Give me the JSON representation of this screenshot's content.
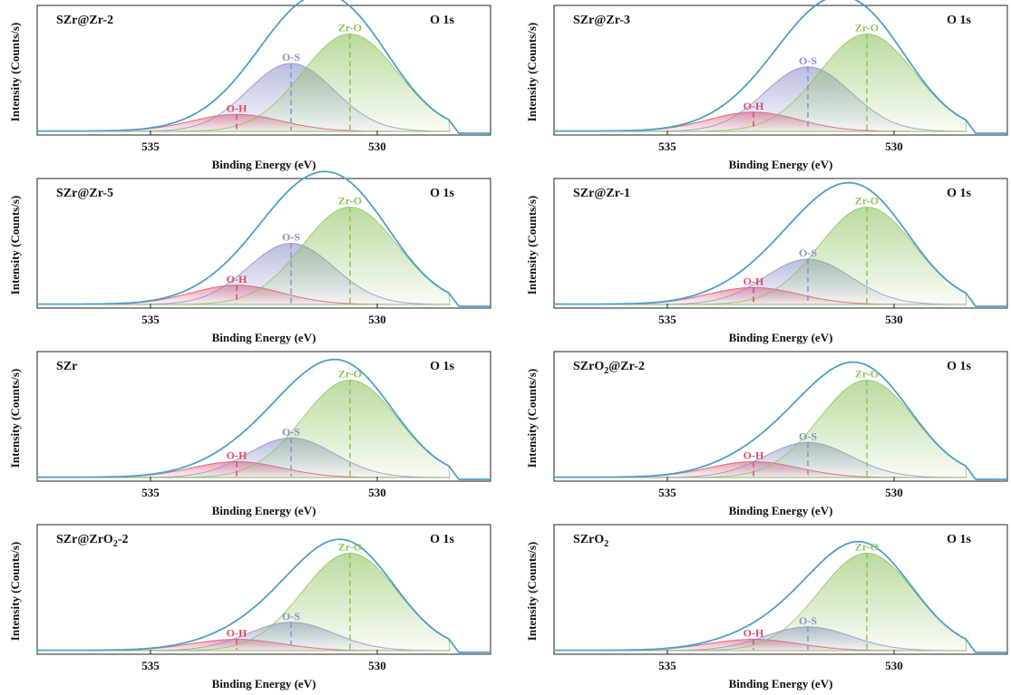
{
  "colors": {
    "envelope": "#4f9fc9",
    "zr_o": "#8cc35c",
    "o_s": "#8b90c8",
    "o_h": "#e04a67"
  },
  "chart_data": [
    {
      "type": "area",
      "title": "SZr@Zr-2",
      "title_sub": "",
      "title_suffix": "",
      "region": "O 1s",
      "xlabel": "Binding Energy (eV)",
      "ylabel": "Intensity (Counts/s)",
      "xlim": [
        537.5,
        527.5
      ],
      "xticks": [
        535,
        530
      ],
      "x_reversed": true,
      "peaks": [
        {
          "name": "Zr-O",
          "center": 530.6,
          "height": 0.86
        },
        {
          "name": "O-S",
          "center": 531.9,
          "height": 0.6
        },
        {
          "name": "O-H",
          "center": 533.1,
          "height": 0.15
        }
      ]
    },
    {
      "type": "area",
      "title": "SZr@Zr-3",
      "title_sub": "",
      "title_suffix": "",
      "region": "O 1s",
      "xlabel": "Binding Energy (eV)",
      "ylabel": "Intensity (Counts/s)",
      "xlim": [
        537.5,
        527.5
      ],
      "xticks": [
        535,
        530
      ],
      "x_reversed": true,
      "peaks": [
        {
          "name": "Zr-O",
          "center": 530.6,
          "height": 0.86
        },
        {
          "name": "O-S",
          "center": 531.9,
          "height": 0.57
        },
        {
          "name": "O-H",
          "center": 533.1,
          "height": 0.17
        }
      ]
    },
    {
      "type": "area",
      "title": "SZr@Zr-5",
      "title_sub": "",
      "title_suffix": "",
      "region": "O 1s",
      "xlabel": "Binding Energy (eV)",
      "ylabel": "Intensity (Counts/s)",
      "xlim": [
        537.5,
        527.5
      ],
      "xticks": [
        535,
        530
      ],
      "x_reversed": true,
      "peaks": [
        {
          "name": "Zr-O",
          "center": 530.6,
          "height": 0.86
        },
        {
          "name": "O-S",
          "center": 531.9,
          "height": 0.54
        },
        {
          "name": "O-H",
          "center": 533.1,
          "height": 0.17
        }
      ]
    },
    {
      "type": "area",
      "title": "SZr@Zr-1",
      "title_sub": "",
      "title_suffix": "",
      "region": "O 1s",
      "xlabel": "Binding Energy (eV)",
      "ylabel": "Intensity (Counts/s)",
      "xlim": [
        537.5,
        527.5
      ],
      "xticks": [
        535,
        530
      ],
      "x_reversed": true,
      "peaks": [
        {
          "name": "Zr-O",
          "center": 530.6,
          "height": 0.86
        },
        {
          "name": "O-S",
          "center": 531.9,
          "height": 0.4
        },
        {
          "name": "O-H",
          "center": 533.1,
          "height": 0.15
        }
      ]
    },
    {
      "type": "area",
      "title": "SZr",
      "title_sub": "",
      "title_suffix": "",
      "region": "O 1s",
      "xlabel": "Binding Energy (eV)",
      "ylabel": "Intensity (Counts/s)",
      "xlim": [
        537.5,
        527.5
      ],
      "xticks": [
        535,
        530
      ],
      "x_reversed": true,
      "peaks": [
        {
          "name": "Zr-O",
          "center": 530.6,
          "height": 0.86
        },
        {
          "name": "O-S",
          "center": 531.9,
          "height": 0.35
        },
        {
          "name": "O-H",
          "center": 533.1,
          "height": 0.14
        }
      ]
    },
    {
      "type": "area",
      "title": "SZrO",
      "title_sub": "2",
      "title_suffix": "@Zr-2",
      "region": "O 1s",
      "xlabel": "Binding Energy (eV)",
      "ylabel": "Intensity (Counts/s)",
      "xlim": [
        537.5,
        527.5
      ],
      "xticks": [
        535,
        530
      ],
      "x_reversed": true,
      "peaks": [
        {
          "name": "Zr-O",
          "center": 530.6,
          "height": 0.86
        },
        {
          "name": "O-S",
          "center": 531.9,
          "height": 0.31
        },
        {
          "name": "O-H",
          "center": 533.1,
          "height": 0.14
        }
      ]
    },
    {
      "type": "area",
      "title": "SZr@ZrO",
      "title_sub": "2",
      "title_suffix": "-2",
      "region": "O 1s",
      "xlabel": "Binding Energy (eV)",
      "ylabel": "Intensity (Counts/s)",
      "xlim": [
        537.5,
        527.5
      ],
      "xticks": [
        535,
        530
      ],
      "x_reversed": true,
      "peaks": [
        {
          "name": "Zr-O",
          "center": 530.6,
          "height": 0.86
        },
        {
          "name": "O-S",
          "center": 531.9,
          "height": 0.25
        },
        {
          "name": "O-H",
          "center": 533.1,
          "height": 0.1
        }
      ]
    },
    {
      "type": "area",
      "title": "SZrO",
      "title_sub": "2",
      "title_suffix": "",
      "region": "O 1s",
      "xlabel": "Binding Energy (eV)",
      "ylabel": "Intensity (Counts/s)",
      "xlim": [
        537.5,
        527.5
      ],
      "xticks": [
        535,
        530
      ],
      "x_reversed": true,
      "peaks": [
        {
          "name": "Zr-O",
          "center": 530.6,
          "height": 0.86
        },
        {
          "name": "O-S",
          "center": 531.9,
          "height": 0.21
        },
        {
          "name": "O-H",
          "center": 533.1,
          "height": 0.1
        }
      ]
    }
  ]
}
